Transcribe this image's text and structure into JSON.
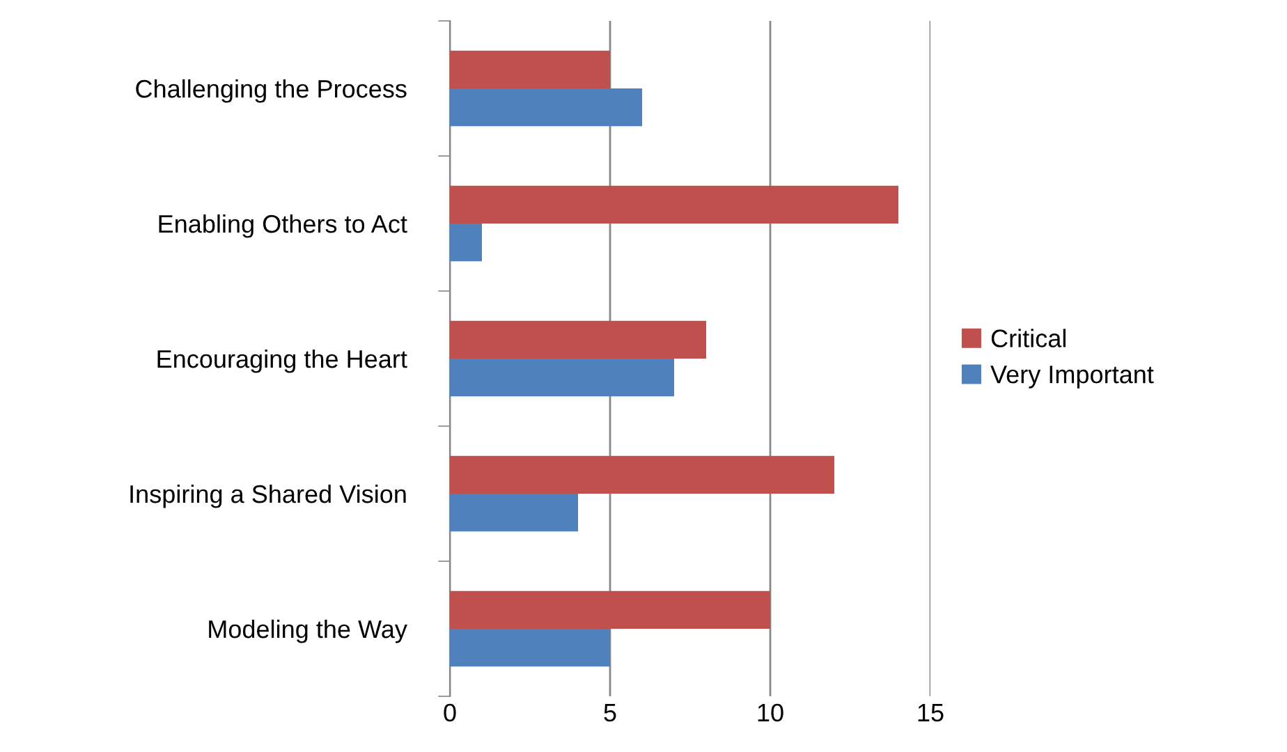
{
  "chart_data": {
    "type": "bar",
    "orientation": "horizontal",
    "categories": [
      "Challenging the Process",
      "Enabling Others to Act",
      "Encouraging the Heart",
      "Inspiring a Shared Vision",
      "Modeling the Way"
    ],
    "series": [
      {
        "name": "Critical",
        "color": "#c0504d",
        "values": [
          5,
          14,
          8,
          12,
          10
        ]
      },
      {
        "name": "Very Important",
        "color": "#4f81bd",
        "values": [
          6,
          1,
          7,
          4,
          5
        ]
      }
    ],
    "xlim": [
      0,
      15
    ],
    "xticks": [
      0,
      5,
      10,
      15
    ],
    "grid": "x",
    "legend": "right"
  }
}
